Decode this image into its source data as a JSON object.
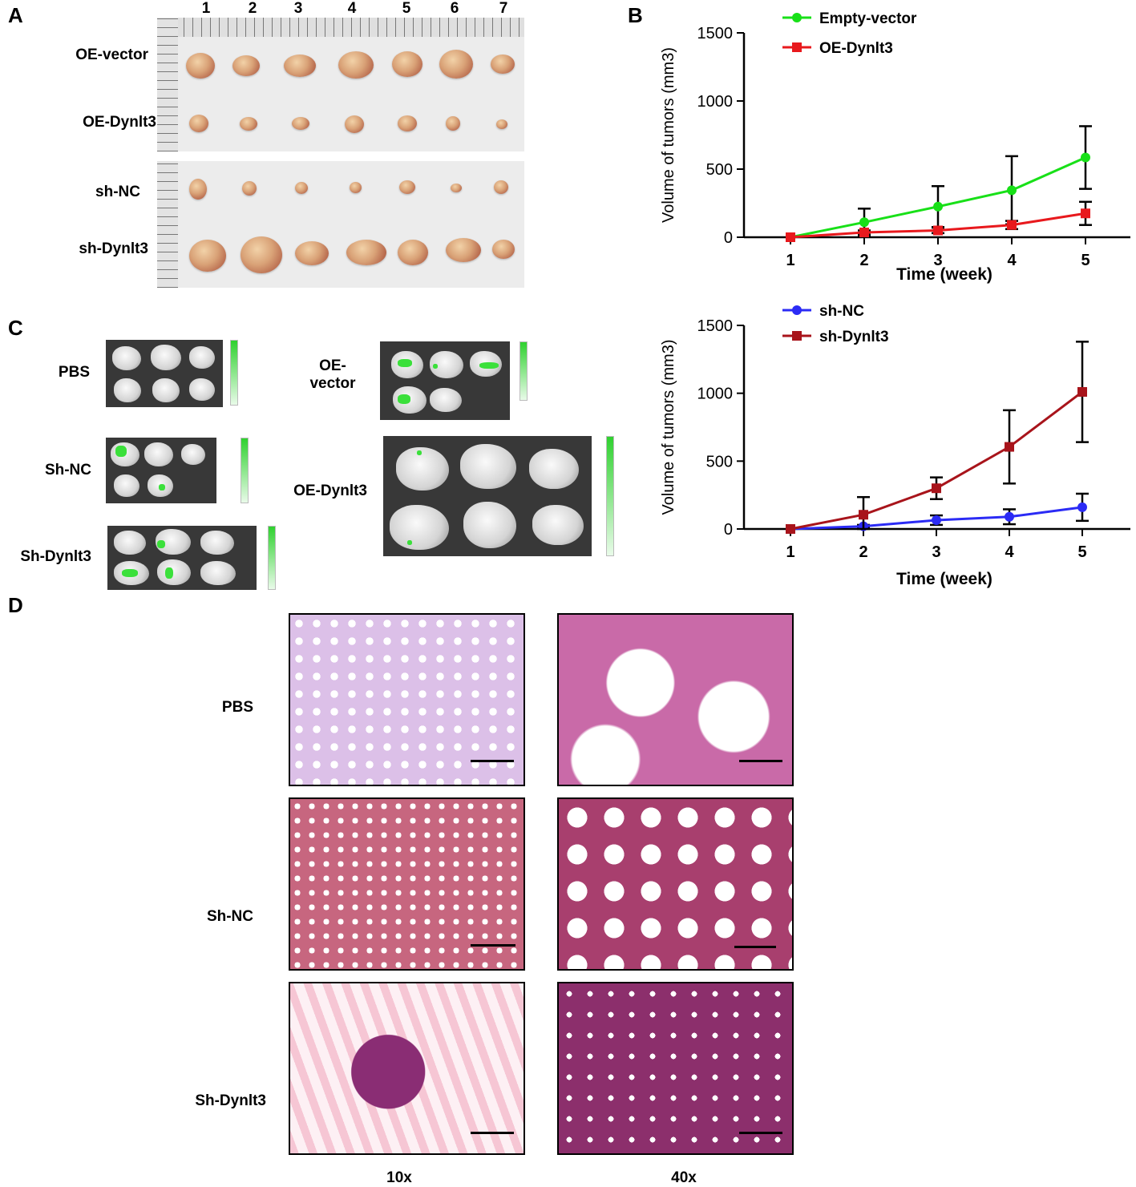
{
  "panels": {
    "a": "A",
    "b": "B",
    "c": "C",
    "d": "D"
  },
  "panel_a": {
    "columns": [
      "1",
      "2",
      "3",
      "4",
      "5",
      "6",
      "7"
    ],
    "rows": [
      "OE-vector",
      "OE-Dynlt3",
      "sh-NC",
      "sh-Dynlt3"
    ]
  },
  "panel_c": {
    "labels": {
      "pbs": "PBS",
      "oe_vector_line1": "OE-",
      "oe_vector_line2": "vector",
      "sh_nc": "Sh-NC",
      "oe_dynlt3": "OE-Dynlt3",
      "sh_dynlt3": "Sh-Dynlt3"
    }
  },
  "panel_d": {
    "rows": [
      "PBS",
      "Sh-NC",
      "Sh-Dynlt3"
    ],
    "columns": [
      "10x",
      "40x"
    ]
  },
  "colors": {
    "empty_vector": "#18e018",
    "oe_dynlt3": "#e8191d",
    "sh_nc": "#2b2bf5",
    "sh_dynlt3": "#a8141b"
  },
  "chart_data": [
    {
      "type": "line",
      "xlabel": "Time (week)",
      "ylabel": "Volume of tumors (mm3)",
      "x": [
        1,
        2,
        3,
        4,
        5
      ],
      "xticks": [
        "1",
        "2",
        "3",
        "4",
        "5"
      ],
      "yticks": [
        "0",
        "500",
        "1000",
        "1500"
      ],
      "ylim": [
        0,
        1500
      ],
      "legend_position": "top-left",
      "series": [
        {
          "name": "Empty-vector",
          "values": [
            0,
            110,
            225,
            345,
            585
          ],
          "errors": [
            0,
            100,
            150,
            250,
            230
          ],
          "marker": "circle"
        },
        {
          "name": "OE-Dynlt3",
          "values": [
            0,
            35,
            50,
            90,
            175
          ],
          "errors": [
            0,
            15,
            20,
            30,
            85
          ],
          "marker": "square"
        }
      ]
    },
    {
      "type": "line",
      "xlabel": "Time (week)",
      "ylabel": "Volume of tumors (mm3)",
      "x": [
        1,
        2,
        3,
        4,
        5
      ],
      "xticks": [
        "1",
        "2",
        "3",
        "4",
        "5"
      ],
      "yticks": [
        "0",
        "500",
        "1000",
        "1500"
      ],
      "ylim": [
        0,
        1500
      ],
      "legend_position": "top-left",
      "series": [
        {
          "name": "sh-NC",
          "values": [
            0,
            20,
            65,
            90,
            160
          ],
          "errors": [
            0,
            10,
            35,
            55,
            100
          ],
          "marker": "circle"
        },
        {
          "name": "sh-Dynlt3",
          "values": [
            0,
            105,
            300,
            605,
            1010
          ],
          "errors": [
            0,
            130,
            80,
            270,
            370
          ],
          "marker": "square"
        }
      ]
    }
  ]
}
